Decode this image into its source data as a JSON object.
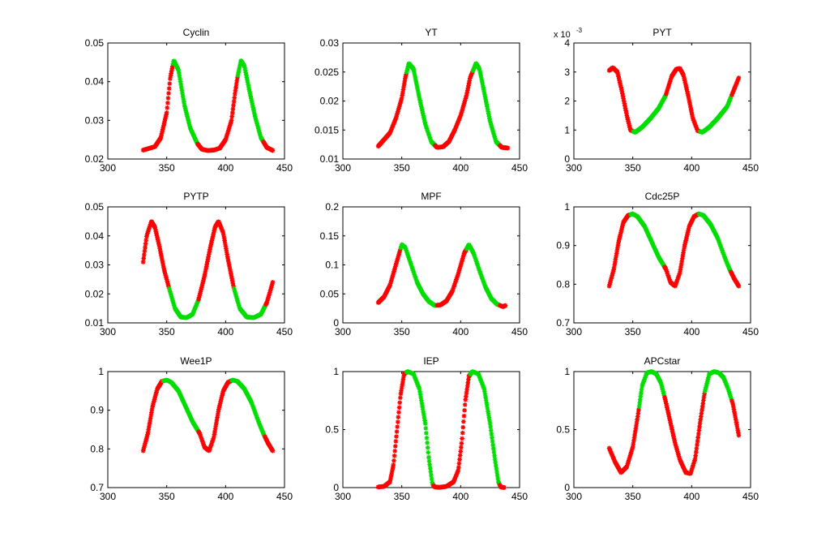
{
  "colors": {
    "rising": "#ff0000",
    "falling": "#00dd00",
    "axis": "#000000",
    "background": "#ffffff"
  },
  "chart_data": [
    {
      "type": "line",
      "title": "Cyclin",
      "xlim": [
        300,
        450
      ],
      "xticks": [
        300,
        350,
        400,
        450
      ],
      "xtick_labels": [
        "300",
        "350",
        "400",
        "450"
      ],
      "ylim": [
        0.02,
        0.05
      ],
      "yticks": [
        0.02,
        0.03,
        0.04,
        0.05
      ],
      "ytick_labels": [
        "0.02",
        "0.03",
        "0.04",
        "0.05"
      ],
      "exponent_label": "",
      "x": [
        330,
        340,
        345,
        350,
        353,
        356,
        360,
        365,
        370,
        376,
        380,
        385,
        390,
        395,
        400,
        405,
        408,
        410,
        413,
        416,
        420,
        425,
        430,
        435,
        440
      ],
      "y": [
        0.0223,
        0.0232,
        0.0255,
        0.032,
        0.041,
        0.0455,
        0.043,
        0.034,
        0.028,
        0.024,
        0.0225,
        0.0222,
        0.0223,
        0.0228,
        0.025,
        0.03,
        0.037,
        0.041,
        0.0455,
        0.044,
        0.038,
        0.031,
        0.0255,
        0.023,
        0.0222
      ],
      "segments": [
        {
          "from": 330,
          "to": 355,
          "phase": "rising"
        },
        {
          "from": 355,
          "to": 376,
          "phase": "falling"
        },
        {
          "from": 376,
          "to": 410,
          "phase": "rising"
        },
        {
          "from": 410,
          "to": 432,
          "phase": "falling"
        },
        {
          "from": 432,
          "to": 440,
          "phase": "rising"
        }
      ]
    },
    {
      "type": "line",
      "title": "YT",
      "xlim": [
        300,
        450
      ],
      "xticks": [
        300,
        350,
        400,
        450
      ],
      "xtick_labels": [
        "300",
        "350",
        "400",
        "450"
      ],
      "ylim": [
        0.01,
        0.03
      ],
      "yticks": [
        0.01,
        0.015,
        0.02,
        0.025,
        0.03
      ],
      "ytick_labels": [
        "0.01",
        "0.015",
        "0.02",
        "0.025",
        "0.03"
      ],
      "exponent_label": "",
      "x": [
        330,
        340,
        345,
        350,
        353,
        356,
        360,
        365,
        370,
        375,
        380,
        385,
        390,
        395,
        400,
        405,
        408,
        413,
        416,
        420,
        425,
        430,
        435,
        440
      ],
      "y": [
        0.0122,
        0.0145,
        0.017,
        0.0205,
        0.024,
        0.0265,
        0.0255,
        0.0205,
        0.016,
        0.013,
        0.012,
        0.0121,
        0.013,
        0.015,
        0.0175,
        0.021,
        0.024,
        0.0265,
        0.0255,
        0.0215,
        0.0165,
        0.013,
        0.012,
        0.0119
      ],
      "segments": [
        {
          "from": 330,
          "to": 354,
          "phase": "rising"
        },
        {
          "from": 354,
          "to": 378,
          "phase": "falling"
        },
        {
          "from": 378,
          "to": 410,
          "phase": "rising"
        },
        {
          "from": 410,
          "to": 433,
          "phase": "falling"
        },
        {
          "from": 433,
          "to": 440,
          "phase": "rising"
        }
      ]
    },
    {
      "type": "line",
      "title": "PYT",
      "xlim": [
        300,
        450
      ],
      "xticks": [
        300,
        350,
        400,
        450
      ],
      "xtick_labels": [
        "300",
        "350",
        "400",
        "450"
      ],
      "ylim": [
        0,
        4
      ],
      "yticks": [
        0,
        1,
        2,
        3,
        4
      ],
      "ytick_labels": [
        "0",
        "1",
        "2",
        "3",
        "4"
      ],
      "exponent_label": "x 10",
      "exponent_power": "-3",
      "x": [
        330,
        333,
        337,
        341,
        345,
        348,
        352,
        358,
        365,
        372,
        378,
        383,
        387,
        390,
        393,
        397,
        401,
        405,
        409,
        415,
        422,
        430,
        435,
        440
      ],
      "y": [
        3.05,
        3.15,
        3.0,
        2.3,
        1.5,
        1.0,
        0.92,
        1.1,
        1.4,
        1.75,
        2.2,
        2.85,
        3.1,
        3.12,
        2.9,
        2.2,
        1.4,
        0.98,
        0.92,
        1.1,
        1.4,
        1.8,
        2.3,
        2.8
      ],
      "segments": [
        {
          "from": 330,
          "to": 350,
          "phase": "rising"
        },
        {
          "from": 350,
          "to": 378,
          "phase": "falling"
        },
        {
          "from": 378,
          "to": 407,
          "phase": "rising"
        },
        {
          "from": 407,
          "to": 434,
          "phase": "falling"
        },
        {
          "from": 434,
          "to": 440,
          "phase": "rising"
        }
      ]
    },
    {
      "type": "line",
      "title": "PYTP",
      "xlim": [
        300,
        450
      ],
      "xticks": [
        300,
        350,
        400,
        450
      ],
      "xtick_labels": [
        "300",
        "350",
        "400",
        "450"
      ],
      "ylim": [
        0.01,
        0.05
      ],
      "yticks": [
        0.01,
        0.02,
        0.03,
        0.04,
        0.05
      ],
      "ytick_labels": [
        "0.01",
        "0.02",
        "0.03",
        "0.04",
        "0.05"
      ],
      "exponent_label": "",
      "x": [
        330,
        333,
        337,
        340,
        344,
        348,
        352,
        357,
        362,
        367,
        372,
        377,
        382,
        387,
        391,
        394,
        398,
        402,
        407,
        412,
        418,
        424,
        430,
        435,
        440
      ],
      "y": [
        0.031,
        0.04,
        0.045,
        0.043,
        0.036,
        0.028,
        0.022,
        0.015,
        0.012,
        0.0118,
        0.013,
        0.018,
        0.026,
        0.036,
        0.043,
        0.045,
        0.041,
        0.032,
        0.022,
        0.015,
        0.012,
        0.0118,
        0.013,
        0.017,
        0.024
      ],
      "segments": [
        {
          "from": 330,
          "to": 352,
          "phase": "rising"
        },
        {
          "from": 352,
          "to": 377,
          "phase": "falling"
        },
        {
          "from": 377,
          "to": 407,
          "phase": "rising"
        },
        {
          "from": 407,
          "to": 434,
          "phase": "falling"
        },
        {
          "from": 434,
          "to": 440,
          "phase": "rising"
        }
      ]
    },
    {
      "type": "line",
      "title": "MPF",
      "xlim": [
        300,
        450
      ],
      "xticks": [
        300,
        350,
        400,
        450
      ],
      "xtick_labels": [
        "300",
        "350",
        "400",
        "450"
      ],
      "ylim": [
        0,
        0.2
      ],
      "yticks": [
        0,
        0.05,
        0.1,
        0.15,
        0.2
      ],
      "ytick_labels": [
        "0",
        "0.05",
        "0.1",
        "0.15",
        "0.2"
      ],
      "exponent_label": "",
      "x": [
        330,
        335,
        340,
        345,
        350,
        353,
        358,
        363,
        368,
        373,
        378,
        383,
        388,
        393,
        398,
        403,
        407,
        411,
        416,
        421,
        426,
        431,
        436,
        438
      ],
      "y": [
        0.035,
        0.045,
        0.065,
        0.1,
        0.135,
        0.13,
        0.1,
        0.07,
        0.05,
        0.037,
        0.03,
        0.031,
        0.038,
        0.055,
        0.085,
        0.12,
        0.135,
        0.12,
        0.09,
        0.062,
        0.042,
        0.032,
        0.028,
        0.03
      ],
      "segments": [
        {
          "from": 330,
          "to": 349,
          "phase": "rising"
        },
        {
          "from": 349,
          "to": 380,
          "phase": "falling"
        },
        {
          "from": 380,
          "to": 405,
          "phase": "rising"
        },
        {
          "from": 405,
          "to": 433,
          "phase": "falling"
        },
        {
          "from": 433,
          "to": 438,
          "phase": "rising"
        }
      ]
    },
    {
      "type": "line",
      "title": "Cdc25P",
      "xlim": [
        300,
        450
      ],
      "xticks": [
        300,
        350,
        400,
        450
      ],
      "xtick_labels": [
        "300",
        "350",
        "400",
        "450"
      ],
      "ylim": [
        0.7,
        1
      ],
      "yticks": [
        0.7,
        0.8,
        0.9,
        1
      ],
      "ytick_labels": [
        "0.7",
        "0.8",
        "0.9",
        "1"
      ],
      "exponent_label": "",
      "x": [
        330,
        334,
        338,
        342,
        346,
        350,
        354,
        360,
        366,
        372,
        378,
        382,
        386,
        390,
        394,
        398,
        402,
        406,
        410,
        416,
        422,
        428,
        432,
        436,
        440
      ],
      "y": [
        0.795,
        0.84,
        0.91,
        0.96,
        0.978,
        0.982,
        0.975,
        0.95,
        0.91,
        0.87,
        0.84,
        0.805,
        0.795,
        0.83,
        0.9,
        0.95,
        0.975,
        0.982,
        0.978,
        0.955,
        0.92,
        0.87,
        0.84,
        0.815,
        0.795
      ],
      "segments": [
        {
          "from": 330,
          "to": 348,
          "phase": "rising"
        },
        {
          "from": 348,
          "to": 377,
          "phase": "falling"
        },
        {
          "from": 377,
          "to": 406,
          "phase": "rising"
        },
        {
          "from": 406,
          "to": 433,
          "phase": "falling"
        },
        {
          "from": 433,
          "to": 440,
          "phase": "rising"
        }
      ]
    },
    {
      "type": "line",
      "title": "Wee1P",
      "xlim": [
        300,
        450
      ],
      "xticks": [
        300,
        350,
        400,
        450
      ],
      "xtick_labels": [
        "300",
        "350",
        "400",
        "450"
      ],
      "ylim": [
        0.7,
        1
      ],
      "yticks": [
        0.7,
        0.8,
        0.9,
        1
      ],
      "ytick_labels": [
        "0.7",
        "0.8",
        "0.9",
        "1"
      ],
      "exponent_label": "",
      "x": [
        330,
        334,
        338,
        342,
        346,
        350,
        354,
        360,
        366,
        372,
        378,
        382,
        386,
        390,
        394,
        398,
        402,
        406,
        410,
        416,
        422,
        428,
        432,
        436,
        440
      ],
      "y": [
        0.795,
        0.84,
        0.91,
        0.955,
        0.975,
        0.978,
        0.972,
        0.95,
        0.91,
        0.87,
        0.84,
        0.805,
        0.795,
        0.83,
        0.9,
        0.95,
        0.972,
        0.978,
        0.975,
        0.955,
        0.92,
        0.87,
        0.84,
        0.815,
        0.795
      ],
      "segments": [
        {
          "from": 330,
          "to": 347,
          "phase": "rising"
        },
        {
          "from": 347,
          "to": 377,
          "phase": "falling"
        },
        {
          "from": 377,
          "to": 405,
          "phase": "rising"
        },
        {
          "from": 405,
          "to": 433,
          "phase": "falling"
        },
        {
          "from": 433,
          "to": 440,
          "phase": "rising"
        }
      ]
    },
    {
      "type": "line",
      "title": "IEP",
      "xlim": [
        300,
        450
      ],
      "xticks": [
        300,
        350,
        400,
        450
      ],
      "xtick_labels": [
        "300",
        "350",
        "400",
        "450"
      ],
      "ylim": [
        0,
        1
      ],
      "yticks": [
        0,
        0.5,
        1
      ],
      "ytick_labels": [
        "0",
        "0.5",
        "1"
      ],
      "exponent_label": "",
      "x": [
        330,
        335,
        340,
        343,
        346,
        349,
        352,
        355,
        360,
        365,
        370,
        373,
        376,
        378,
        382,
        388,
        394,
        398,
        401,
        404,
        407,
        410,
        415,
        420,
        425,
        429,
        432,
        434,
        437
      ],
      "y": [
        0.005,
        0.01,
        0.05,
        0.2,
        0.5,
        0.8,
        0.98,
        1.0,
        0.98,
        0.85,
        0.55,
        0.25,
        0.03,
        0.005,
        0.002,
        0.01,
        0.05,
        0.15,
        0.4,
        0.75,
        0.96,
        1.0,
        0.98,
        0.85,
        0.55,
        0.25,
        0.05,
        0.005,
        0.0
      ],
      "segments": [
        {
          "from": 330,
          "to": 354,
          "phase": "rising"
        },
        {
          "from": 354,
          "to": 377,
          "phase": "falling"
        },
        {
          "from": 377,
          "to": 408,
          "phase": "rising"
        },
        {
          "from": 408,
          "to": 433,
          "phase": "falling"
        },
        {
          "from": 433,
          "to": 437,
          "phase": "rising"
        }
      ]
    },
    {
      "type": "line",
      "title": "APCstar",
      "xlim": [
        300,
        450
      ],
      "xticks": [
        300,
        350,
        400,
        450
      ],
      "xtick_labels": [
        "300",
        "350",
        "400",
        "450"
      ],
      "ylim": [
        0,
        1
      ],
      "yticks": [
        0,
        0.5,
        1
      ],
      "ytick_labels": [
        "0",
        "0.5",
        "1"
      ],
      "exponent_label": "",
      "x": [
        330,
        335,
        340,
        345,
        350,
        354,
        358,
        362,
        366,
        370,
        374,
        378,
        382,
        386,
        390,
        395,
        399,
        403,
        407,
        411,
        415,
        419,
        423,
        427,
        431,
        435,
        440
      ],
      "y": [
        0.34,
        0.22,
        0.13,
        0.18,
        0.35,
        0.6,
        0.88,
        0.99,
        1.0,
        0.98,
        0.9,
        0.74,
        0.56,
        0.38,
        0.24,
        0.13,
        0.12,
        0.25,
        0.55,
        0.82,
        0.98,
        1.0,
        0.99,
        0.95,
        0.85,
        0.72,
        0.45
      ],
      "segments": [
        {
          "from": 330,
          "to": 355,
          "phase": "rising"
        },
        {
          "from": 355,
          "to": 377,
          "phase": "falling"
        },
        {
          "from": 377,
          "to": 411,
          "phase": "rising"
        },
        {
          "from": 411,
          "to": 434,
          "phase": "falling"
        },
        {
          "from": 434,
          "to": 440,
          "phase": "rising"
        }
      ]
    }
  ]
}
